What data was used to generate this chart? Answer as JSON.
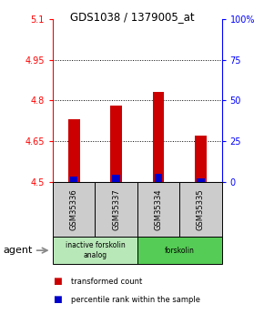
{
  "title": "GDS1038 / 1379005_at",
  "samples": [
    "GSM35336",
    "GSM35337",
    "GSM35334",
    "GSM35335"
  ],
  "bar_values": [
    4.73,
    4.78,
    4.83,
    4.67
  ],
  "percentile_values": [
    3.5,
    4.5,
    5.0,
    2.5
  ],
  "bar_bottom": 4.5,
  "ylim": [
    4.5,
    5.1
  ],
  "yticks_left": [
    4.5,
    4.65,
    4.8,
    4.95,
    5.1
  ],
  "yticks_right": [
    0,
    25,
    50,
    75,
    100
  ],
  "ytick_right_labels": [
    "0",
    "25",
    "50",
    "75",
    "100%"
  ],
  "bar_color": "#cc0000",
  "percentile_color": "#0000cc",
  "agent_groups": [
    {
      "label": "inactive forskolin\nanalog",
      "samples": [
        0,
        1
      ],
      "color": "#b8e8b8"
    },
    {
      "label": "forskolin",
      "samples": [
        2,
        3
      ],
      "color": "#55cc55"
    }
  ],
  "legend_items": [
    {
      "label": "transformed count",
      "color": "#cc0000"
    },
    {
      "label": "percentile rank within the sample",
      "color": "#0000cc"
    }
  ],
  "sample_box_color": "#cccccc",
  "bar_width": 0.28,
  "percentile_bar_width": 0.18
}
